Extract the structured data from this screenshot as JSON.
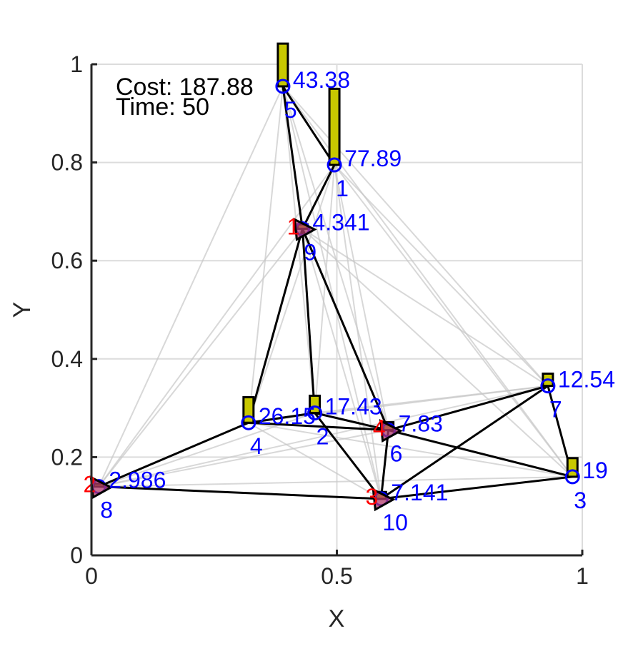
{
  "chart_data": {
    "type": "scatter",
    "title": "",
    "xlabel": "X",
    "ylabel": "Y",
    "xlim": [
      0,
      1
    ],
    "ylim": [
      0,
      1
    ],
    "xticks": [
      "0",
      "0.5",
      "1"
    ],
    "yticks": [
      "0",
      "0.2",
      "0.4",
      "0.6",
      "0.8",
      "1"
    ],
    "grid": true,
    "info": {
      "cost_text": "Cost: 187.88",
      "time_text": "Time: 50"
    },
    "nodes": [
      {
        "id": "1",
        "x": 0.495,
        "y": 0.795,
        "value": 77.89,
        "value_text": "77.89",
        "bar": 0.155
      },
      {
        "id": "2",
        "x": 0.455,
        "y": 0.29,
        "value": 17.43,
        "value_text": "17.43",
        "bar": 0.035
      },
      {
        "id": "3",
        "x": 0.98,
        "y": 0.16,
        "value": 19,
        "value_text": "19",
        "bar": 0.038
      },
      {
        "id": "4",
        "x": 0.32,
        "y": 0.27,
        "value": 26.15,
        "value_text": "26.15",
        "bar": 0.052
      },
      {
        "id": "5",
        "x": 0.39,
        "y": 0.955,
        "value": 43.38,
        "value_text": "43.38",
        "bar": 0.087
      },
      {
        "id": "6",
        "x": 0.605,
        "y": 0.255,
        "value": 7.83,
        "value_text": "7.83",
        "bar": 0.016
      },
      {
        "id": "7",
        "x": 0.93,
        "y": 0.345,
        "value": 12.54,
        "value_text": "12.54",
        "bar": 0.025
      },
      {
        "id": "8",
        "x": 0.015,
        "y": 0.14,
        "value": 2.986,
        "value_text": "2.986",
        "bar": 0.006
      },
      {
        "id": "9",
        "x": 0.43,
        "y": 0.665,
        "value": 4.341,
        "value_text": "4.341",
        "bar": 0.009
      },
      {
        "id": "10",
        "x": 0.59,
        "y": 0.115,
        "value": 7.141,
        "value_text": "7.141",
        "bar": 0.014
      }
    ],
    "agents": [
      {
        "id": "1",
        "node": "9"
      },
      {
        "id": "2",
        "node": "8"
      },
      {
        "id": "3",
        "node": "10"
      },
      {
        "id": "4",
        "node": "6"
      }
    ],
    "route_edges": [
      [
        "5",
        "1"
      ],
      [
        "5",
        "9"
      ],
      [
        "1",
        "9"
      ],
      [
        "9",
        "4"
      ],
      [
        "9",
        "2"
      ],
      [
        "9",
        "6"
      ],
      [
        "4",
        "2"
      ],
      [
        "4",
        "6"
      ],
      [
        "4",
        "8"
      ],
      [
        "8",
        "10"
      ],
      [
        "2",
        "6"
      ],
      [
        "2",
        "10"
      ],
      [
        "6",
        "10"
      ],
      [
        "6",
        "7"
      ],
      [
        "6",
        "3"
      ],
      [
        "7",
        "3"
      ],
      [
        "7",
        "10"
      ],
      [
        "10",
        "3"
      ]
    ],
    "background_edges": [
      [
        "5",
        "8"
      ],
      [
        "5",
        "4"
      ],
      [
        "5",
        "2"
      ],
      [
        "5",
        "6"
      ],
      [
        "5",
        "10"
      ],
      [
        "5",
        "7"
      ],
      [
        "5",
        "3"
      ],
      [
        "1",
        "4"
      ],
      [
        "1",
        "2"
      ],
      [
        "1",
        "6"
      ],
      [
        "1",
        "10"
      ],
      [
        "1",
        "7"
      ],
      [
        "1",
        "3"
      ],
      [
        "1",
        "8"
      ],
      [
        "9",
        "8"
      ],
      [
        "9",
        "10"
      ],
      [
        "9",
        "7"
      ],
      [
        "9",
        "3"
      ],
      [
        "8",
        "2"
      ],
      [
        "8",
        "6"
      ],
      [
        "8",
        "3"
      ],
      [
        "8",
        "7"
      ],
      [
        "4",
        "10"
      ],
      [
        "4",
        "7"
      ],
      [
        "4",
        "3"
      ],
      [
        "2",
        "7"
      ],
      [
        "2",
        "3"
      ],
      [
        "10",
        "7"
      ]
    ]
  },
  "colors": {
    "route": "#000000",
    "background_edge": "#c8c8c8",
    "node": "#0000ff",
    "bar_fill": "#c8c800",
    "bar_stroke": "#000000",
    "agent_fill": "#b03a6a",
    "agent_label": "#ff0000",
    "value_label": "#0000ff",
    "grid": "#dcdcdc",
    "axis": "#262626"
  }
}
